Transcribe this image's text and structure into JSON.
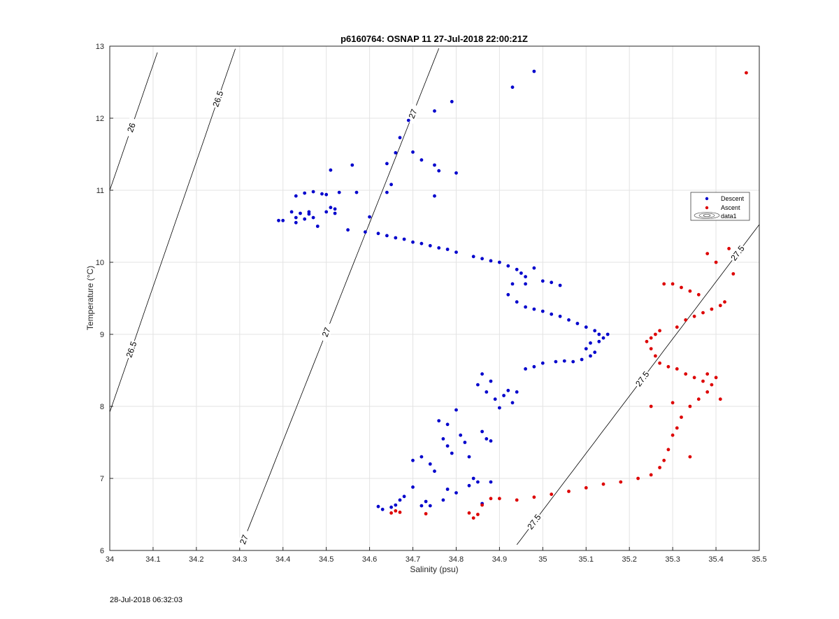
{
  "chart_data": {
    "type": "scatter",
    "title": "p6160764: OSNAP 11 27-Jul-2018 22:00:21Z",
    "xlabel": "Salinity (psu)",
    "ylabel": "Temperature (°C)",
    "xlim": [
      34,
      35.5
    ],
    "ylim": [
      6,
      13
    ],
    "xticks": [
      "34",
      "34.1",
      "34.2",
      "34.3",
      "34.4",
      "34.5",
      "34.6",
      "34.7",
      "34.8",
      "34.9",
      "35",
      "35.1",
      "35.2",
      "35.3",
      "35.4",
      "35.5"
    ],
    "yticks": [
      "6",
      "7",
      "8",
      "9",
      "10",
      "11",
      "12",
      "13"
    ],
    "grid": true,
    "legend_position": "right",
    "series": [
      {
        "name": "Descent",
        "color": "#0000cc",
        "points": [
          [
            34.4,
            10.58
          ],
          [
            34.39,
            10.58
          ],
          [
            34.42,
            10.7
          ],
          [
            34.43,
            10.62
          ],
          [
            34.43,
            10.55
          ],
          [
            34.44,
            10.68
          ],
          [
            34.45,
            10.6
          ],
          [
            34.46,
            10.67
          ],
          [
            34.46,
            10.7
          ],
          [
            34.47,
            10.62
          ],
          [
            34.43,
            10.92
          ],
          [
            34.45,
            10.96
          ],
          [
            34.47,
            10.98
          ],
          [
            34.49,
            10.95
          ],
          [
            34.5,
            10.94
          ],
          [
            34.48,
            10.5
          ],
          [
            34.5,
            10.7
          ],
          [
            34.51,
            10.76
          ],
          [
            34.52,
            10.68
          ],
          [
            34.52,
            10.74
          ],
          [
            34.53,
            10.97
          ],
          [
            34.51,
            11.28
          ],
          [
            34.56,
            11.35
          ],
          [
            34.57,
            10.97
          ],
          [
            34.6,
            10.63
          ],
          [
            34.55,
            10.45
          ],
          [
            34.59,
            10.42
          ],
          [
            34.62,
            10.4
          ],
          [
            34.64,
            10.37
          ],
          [
            34.66,
            10.34
          ],
          [
            34.68,
            10.32
          ],
          [
            34.7,
            10.28
          ],
          [
            34.72,
            10.26
          ],
          [
            34.74,
            10.23
          ],
          [
            34.76,
            10.2
          ],
          [
            34.78,
            10.18
          ],
          [
            34.8,
            10.14
          ],
          [
            34.84,
            10.08
          ],
          [
            34.86,
            10.05
          ],
          [
            34.88,
            10.02
          ],
          [
            34.9,
            10.0
          ],
          [
            34.92,
            9.95
          ],
          [
            34.94,
            9.9
          ],
          [
            34.95,
            9.85
          ],
          [
            34.96,
            9.8
          ],
          [
            34.98,
            9.92
          ],
          [
            34.96,
            9.7
          ],
          [
            34.93,
            9.7
          ],
          [
            34.92,
            9.55
          ],
          [
            34.94,
            9.45
          ],
          [
            34.96,
            9.38
          ],
          [
            34.98,
            9.35
          ],
          [
            35.0,
            9.32
          ],
          [
            35.02,
            9.28
          ],
          [
            35.04,
            9.25
          ],
          [
            35.06,
            9.2
          ],
          [
            35.08,
            9.15
          ],
          [
            35.1,
            9.1
          ],
          [
            35.12,
            9.05
          ],
          [
            35.13,
            9.0
          ],
          [
            35.14,
            8.95
          ],
          [
            35.15,
            9.0
          ],
          [
            35.13,
            8.9
          ],
          [
            35.11,
            8.88
          ],
          [
            35.1,
            8.8
          ],
          [
            35.12,
            8.75
          ],
          [
            35.11,
            8.7
          ],
          [
            35.09,
            8.65
          ],
          [
            35.07,
            8.62
          ],
          [
            35.05,
            8.63
          ],
          [
            35.03,
            8.62
          ],
          [
            35.0,
            8.6
          ],
          [
            34.98,
            8.55
          ],
          [
            34.96,
            8.52
          ],
          [
            35.02,
            9.72
          ],
          [
            35.04,
            9.68
          ],
          [
            35.0,
            9.74
          ],
          [
            34.64,
            11.37
          ],
          [
            34.64,
            10.97
          ],
          [
            34.65,
            11.08
          ],
          [
            34.66,
            11.52
          ],
          [
            34.67,
            11.73
          ],
          [
            34.69,
            11.97
          ],
          [
            34.7,
            11.53
          ],
          [
            34.72,
            11.42
          ],
          [
            34.75,
            12.1
          ],
          [
            34.75,
            11.35
          ],
          [
            34.76,
            11.27
          ],
          [
            34.75,
            10.92
          ],
          [
            34.79,
            12.23
          ],
          [
            34.8,
            11.24
          ],
          [
            34.93,
            12.43
          ],
          [
            34.98,
            12.65
          ],
          [
            34.62,
            6.61
          ],
          [
            34.63,
            6.57
          ],
          [
            34.65,
            6.6
          ],
          [
            34.66,
            6.63
          ],
          [
            34.67,
            6.7
          ],
          [
            34.68,
            6.75
          ],
          [
            34.7,
            6.88
          ],
          [
            34.72,
            6.62
          ],
          [
            34.73,
            6.68
          ],
          [
            34.74,
            6.62
          ],
          [
            34.7,
            7.25
          ],
          [
            34.72,
            7.3
          ],
          [
            34.74,
            7.2
          ],
          [
            34.75,
            7.1
          ],
          [
            34.76,
            7.8
          ],
          [
            34.78,
            7.75
          ],
          [
            34.77,
            7.55
          ],
          [
            34.78,
            7.45
          ],
          [
            34.79,
            7.35
          ],
          [
            34.8,
            7.95
          ],
          [
            34.81,
            7.6
          ],
          [
            34.82,
            7.5
          ],
          [
            34.83,
            7.3
          ],
          [
            34.84,
            7.0
          ],
          [
            34.85,
            6.95
          ],
          [
            34.86,
            7.65
          ],
          [
            34.87,
            7.55
          ],
          [
            34.88,
            7.52
          ],
          [
            34.85,
            8.3
          ],
          [
            34.86,
            8.45
          ],
          [
            34.87,
            8.2
          ],
          [
            34.88,
            8.35
          ],
          [
            34.89,
            8.1
          ],
          [
            34.9,
            7.98
          ],
          [
            34.91,
            8.15
          ],
          [
            34.92,
            8.22
          ],
          [
            34.93,
            8.05
          ],
          [
            34.94,
            8.2
          ],
          [
            34.88,
            6.95
          ],
          [
            34.86,
            6.65
          ],
          [
            34.83,
            6.9
          ],
          [
            34.8,
            6.8
          ],
          [
            34.78,
            6.85
          ],
          [
            34.77,
            6.7
          ]
        ]
      },
      {
        "name": "Ascent",
        "color": "#dd0000",
        "points": [
          [
            35.47,
            12.63
          ],
          [
            35.43,
            10.19
          ],
          [
            35.44,
            9.84
          ],
          [
            35.38,
            10.12
          ],
          [
            35.4,
            10.0
          ],
          [
            35.42,
            9.45
          ],
          [
            35.41,
            9.4
          ],
          [
            35.39,
            9.35
          ],
          [
            35.37,
            9.3
          ],
          [
            35.35,
            9.25
          ],
          [
            35.33,
            9.2
          ],
          [
            35.31,
            9.1
          ],
          [
            35.3,
            9.7
          ],
          [
            35.32,
            9.65
          ],
          [
            35.34,
            9.6
          ],
          [
            35.36,
            9.55
          ],
          [
            35.28,
            9.7
          ],
          [
            35.27,
            9.05
          ],
          [
            35.26,
            9.0
          ],
          [
            35.25,
            8.95
          ],
          [
            35.24,
            8.9
          ],
          [
            35.25,
            8.8
          ],
          [
            35.26,
            8.7
          ],
          [
            35.27,
            8.6
          ],
          [
            35.29,
            8.55
          ],
          [
            35.31,
            8.52
          ],
          [
            35.33,
            8.45
          ],
          [
            35.35,
            8.4
          ],
          [
            35.37,
            8.35
          ],
          [
            35.39,
            8.3
          ],
          [
            35.4,
            8.4
          ],
          [
            35.38,
            8.2
          ],
          [
            35.36,
            8.1
          ],
          [
            35.34,
            8.0
          ],
          [
            35.32,
            7.85
          ],
          [
            35.31,
            7.7
          ],
          [
            35.3,
            7.6
          ],
          [
            35.29,
            7.4
          ],
          [
            35.28,
            7.25
          ],
          [
            35.27,
            7.15
          ],
          [
            35.25,
            7.05
          ],
          [
            35.22,
            7.0
          ],
          [
            35.18,
            6.95
          ],
          [
            35.14,
            6.92
          ],
          [
            35.1,
            6.87
          ],
          [
            35.06,
            6.82
          ],
          [
            35.02,
            6.78
          ],
          [
            34.98,
            6.74
          ],
          [
            34.94,
            6.7
          ],
          [
            34.9,
            6.72
          ],
          [
            34.88,
            6.72
          ],
          [
            34.86,
            6.63
          ],
          [
            34.85,
            6.5
          ],
          [
            34.84,
            6.45
          ],
          [
            34.83,
            6.52
          ],
          [
            34.73,
            6.51
          ],
          [
            34.66,
            6.55
          ],
          [
            34.65,
            6.52
          ],
          [
            34.67,
            6.53
          ],
          [
            35.25,
            8.0
          ],
          [
            35.3,
            8.05
          ],
          [
            35.34,
            7.3
          ],
          [
            35.38,
            8.45
          ],
          [
            35.41,
            8.1
          ]
        ]
      }
    ],
    "contours": [
      {
        "label": "26",
        "level": 26
      },
      {
        "label": "26.5",
        "level": 26.5
      },
      {
        "label": "27",
        "level": 27
      },
      {
        "label": "27.5",
        "level": 27.5
      }
    ],
    "legend": [
      "Descent",
      "Ascent",
      "data1"
    ]
  },
  "footer": {
    "timestamp": "28-Jul-2018 06:32:03"
  }
}
